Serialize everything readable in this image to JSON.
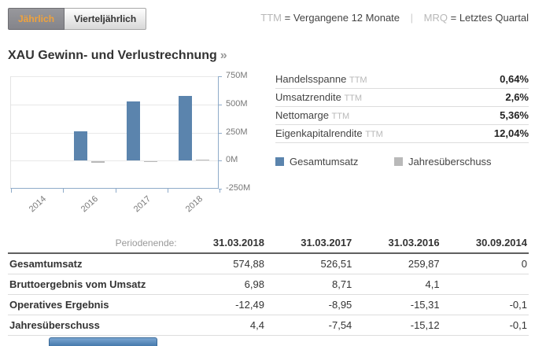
{
  "toolbar": {
    "view_toggle": [
      {
        "label": "Jährlich",
        "active": true
      },
      {
        "label": "Vierteljährlich",
        "active": false
      }
    ],
    "abbr_note": {
      "ttm_abbr": "TTM",
      "ttm_def": "= Vergangene 12 Monate",
      "separator": "|",
      "mrq_abbr": "MRQ",
      "mrq_def": "= Letztes Quartal"
    }
  },
  "section": {
    "title": "XAU Gewinn- und Verlustrechnung",
    "more_arrow": "»"
  },
  "chart_data": {
    "type": "bar",
    "categories": [
      "2014",
      "2016",
      "2017",
      "2018"
    ],
    "series": [
      {
        "name": "Gesamtumsatz",
        "color": "#5b84ad",
        "values": [
          0,
          259.87,
          526.51,
          574.88
        ]
      },
      {
        "name": "Jahresüberschuss",
        "color": "#b9b9b9",
        "values": [
          -0.1,
          -15.12,
          -7.54,
          4.4
        ]
      }
    ],
    "unit": "M",
    "title": "",
    "xlabel": "",
    "ylabel": "",
    "ylim": [
      -250,
      750
    ],
    "y_ticks": [
      {
        "value": 750,
        "label": "750M"
      },
      {
        "value": 500,
        "label": "500M"
      },
      {
        "value": 250,
        "label": "250M"
      },
      {
        "value": 0,
        "label": "0M"
      },
      {
        "value": -250,
        "label": "-250M"
      }
    ],
    "grid": "horizontal",
    "legend_position": "right"
  },
  "metrics": [
    {
      "label": "Handelsspanne",
      "suffix": "TTM",
      "value": "0,64%"
    },
    {
      "label": "Umsatzrendite",
      "suffix": "TTM",
      "value": "2,6%"
    },
    {
      "label": "Nettomarge",
      "suffix": "TTM",
      "value": "5,36%"
    },
    {
      "label": "Eigenkapitalrendite",
      "suffix": "TTM",
      "value": "12,04%"
    }
  ],
  "legend": [
    {
      "label": "Gesamtumsatz",
      "color": "#5b84ad"
    },
    {
      "label": "Jahresüberschuss",
      "color": "#b9b9b9"
    }
  ],
  "table": {
    "period_label": "Periodenende:",
    "columns": [
      "31.03.2018",
      "31.03.2017",
      "31.03.2016",
      "30.09.2014"
    ],
    "rows": [
      {
        "label": "Gesamtumsatz",
        "values": [
          "574,88",
          "526,51",
          "259,87",
          "0"
        ]
      },
      {
        "label": "Bruttoergebnis vom Umsatz",
        "values": [
          "6,98",
          "8,71",
          "4,1",
          ""
        ]
      },
      {
        "label": "Operatives Ergebnis",
        "values": [
          "-12,49",
          "-8,95",
          "-15,31",
          "-0,1"
        ]
      },
      {
        "label": "Jahresüberschuss",
        "values": [
          "4,4",
          "-7,54",
          "-15,12",
          "-0,1"
        ]
      }
    ]
  },
  "colors": {
    "accent_orange": "#efa23d",
    "bar_blue": "#5b84ad",
    "bar_gray": "#b9b9b9",
    "axis_blue": "#8fabc9"
  }
}
